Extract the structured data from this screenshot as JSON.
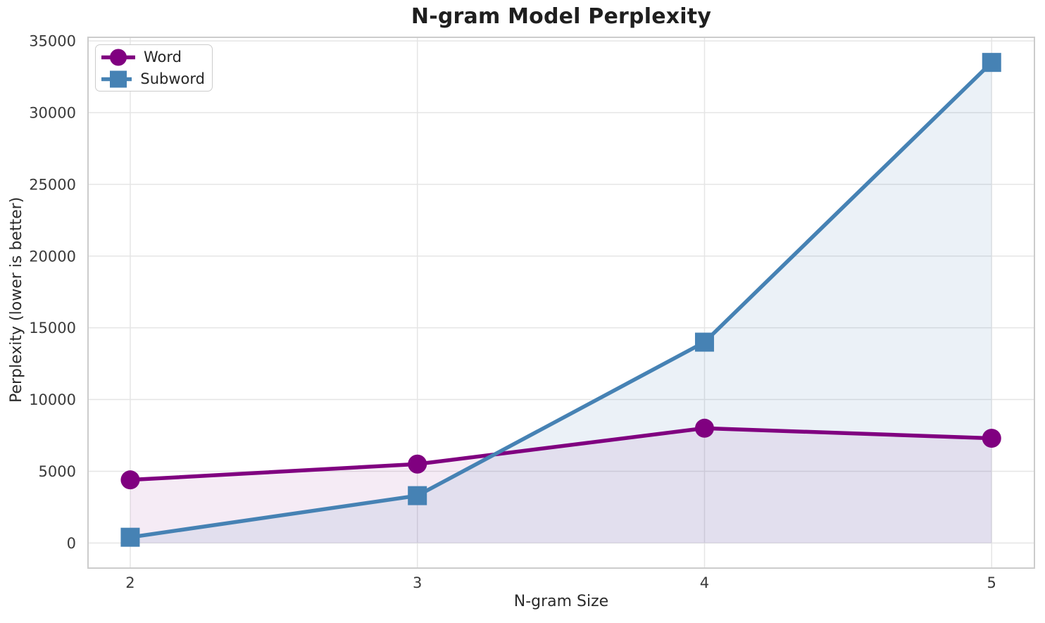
{
  "chart_data": {
    "type": "line",
    "title": "N-gram Model Perplexity",
    "xlabel": "N-gram Size",
    "ylabel": "Perplexity (lower is better)",
    "x": [
      2,
      3,
      4,
      5
    ],
    "xtick_labels": [
      "2",
      "3",
      "4",
      "5"
    ],
    "yticks": [
      0,
      5000,
      10000,
      15000,
      20000,
      25000,
      30000,
      35000
    ],
    "ytick_labels": [
      "0",
      "5000",
      "10000",
      "15000",
      "20000",
      "25000",
      "30000",
      "35000"
    ],
    "xlim": [
      1.853,
      5.149
    ],
    "ylim": [
      -1750,
      35250
    ],
    "grid": true,
    "legend_position": "upper left",
    "series": [
      {
        "name": "Word",
        "marker": "circle",
        "color": "#800080",
        "fill": "rgba(128,0,128,0.08)",
        "values": [
          4400,
          5500,
          8000,
          7300
        ]
      },
      {
        "name": "Subword",
        "marker": "square",
        "color": "#4682B4",
        "fill": "rgba(70,130,180,0.11)",
        "values": [
          400,
          3300,
          14000,
          33500
        ]
      }
    ],
    "colors": {
      "grid": "#e5e5e5",
      "spine": "#cccccc",
      "title_text": "#1f1f1f",
      "tick_text": "#3a3a3a",
      "label_text": "#2b2b2b"
    }
  }
}
